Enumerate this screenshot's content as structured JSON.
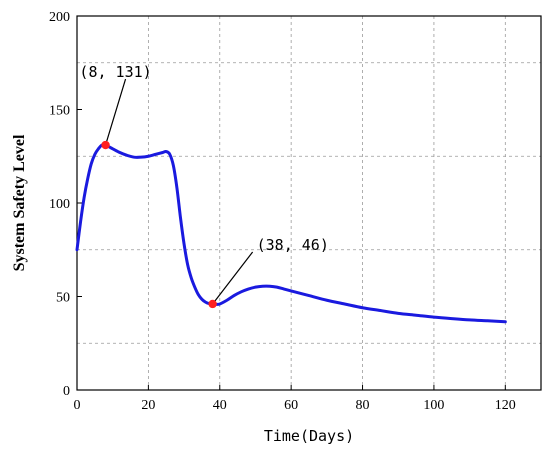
{
  "chart_data": {
    "type": "line",
    "xlabel": "Time(Days)",
    "ylabel": "System Safety Level",
    "xlim": [
      0,
      130
    ],
    "ylim": [
      0,
      200
    ],
    "x_ticks": [
      0,
      20,
      40,
      60,
      80,
      100,
      120
    ],
    "y_ticks": [
      0,
      50,
      100,
      150,
      200
    ],
    "x_tick_labels": [
      "0",
      "20",
      "40",
      "60",
      "80",
      "100",
      "120"
    ],
    "y_tick_labels": [
      "0",
      "50",
      "100",
      "150",
      "200"
    ],
    "grid": true,
    "line_color": "#1a1adf",
    "marker_color": "#ff2020",
    "series": [
      {
        "x": [
          0,
          1,
          2,
          3,
          4,
          5,
          6,
          7,
          8,
          10,
          12,
          14,
          16,
          18,
          20,
          22,
          24,
          25,
          26,
          27,
          28,
          29,
          30,
          31,
          32,
          33,
          34,
          35,
          36,
          37,
          38,
          39,
          40,
          42,
          44,
          46,
          48,
          50,
          52,
          54,
          56,
          58,
          60,
          65,
          70,
          75,
          80,
          85,
          90,
          95,
          100,
          105,
          110,
          115,
          120
        ],
        "y": [
          75,
          90,
          103,
          113,
          121,
          126,
          129,
          131,
          131,
          129,
          127,
          125.5,
          124.5,
          124.5,
          125,
          126,
          127,
          127.5,
          126,
          120,
          108,
          92,
          78,
          67,
          60,
          55,
          51,
          48.5,
          47,
          46.2,
          46,
          45.8,
          46,
          48,
          50.5,
          52.5,
          54,
          55,
          55.5,
          55.5,
          55,
          54,
          53,
          50.5,
          48,
          46,
          44,
          42.5,
          41,
          40,
          39,
          38.2,
          37.5,
          37,
          36.5
        ]
      }
    ],
    "points": [
      {
        "x": 8,
        "y": 131,
        "label": "(8, 131)"
      },
      {
        "x": 38,
        "y": 46,
        "label": "(38, 46)"
      }
    ]
  }
}
